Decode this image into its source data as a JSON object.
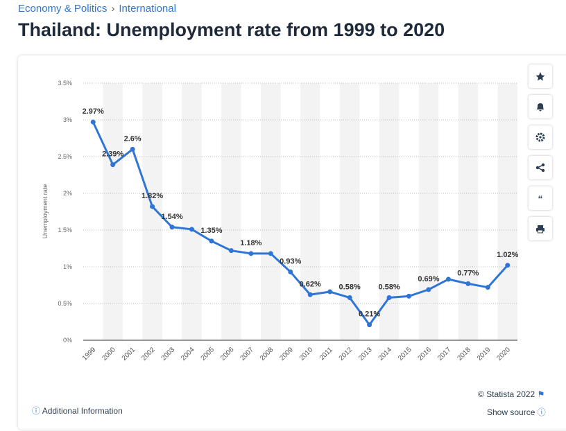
{
  "breadcrumbs": [
    "Economy & Politics",
    "International"
  ],
  "chart_data": {
    "type": "line",
    "title": "Thailand: Unemployment rate from 1999 to 2020",
    "y_label": "Unemployment rate",
    "categories": [
      "1999",
      "2000",
      "2001",
      "2002",
      "2003",
      "2004",
      "2005",
      "2006",
      "2007",
      "2008",
      "2009",
      "2010",
      "2011",
      "2012",
      "2013",
      "2014",
      "2015",
      "2016",
      "2017",
      "2018",
      "2019",
      "2020"
    ],
    "values": [
      2.97,
      2.39,
      2.6,
      1.82,
      1.54,
      1.51,
      1.35,
      1.22,
      1.18,
      1.18,
      0.93,
      0.62,
      0.66,
      0.58,
      0.21,
      0.58,
      0.6,
      0.69,
      0.83,
      0.77,
      0.72,
      1.02
    ],
    "value_labels": [
      "2.97%",
      "2.39%",
      "2.6%",
      "1.82%",
      "1.54%",
      null,
      "1.35%",
      null,
      "1.18%",
      null,
      "0.93%",
      "0.62%",
      null,
      "0.58%",
      "0.21%",
      "0.58%",
      null,
      "0.69%",
      null,
      "0.77%",
      null,
      "1.02%"
    ],
    "color": "#2e75d6",
    "ylim": [
      0,
      3.5
    ],
    "yticks": [
      {
        "value": 0,
        "label": "0%"
      },
      {
        "value": 0.5,
        "label": "0.5%"
      },
      {
        "value": 1,
        "label": "1%"
      },
      {
        "value": 1.5,
        "label": "1.5%"
      },
      {
        "value": 2,
        "label": "2%"
      },
      {
        "value": 2.5,
        "label": "2.5%"
      },
      {
        "value": 3,
        "label": "3%"
      },
      {
        "value": 3.5,
        "label": "3.5%"
      }
    ],
    "grid": true
  },
  "footer": {
    "copyright": "© Statista 2022",
    "show_source": "Show source",
    "additional_info": "Additional Information"
  }
}
